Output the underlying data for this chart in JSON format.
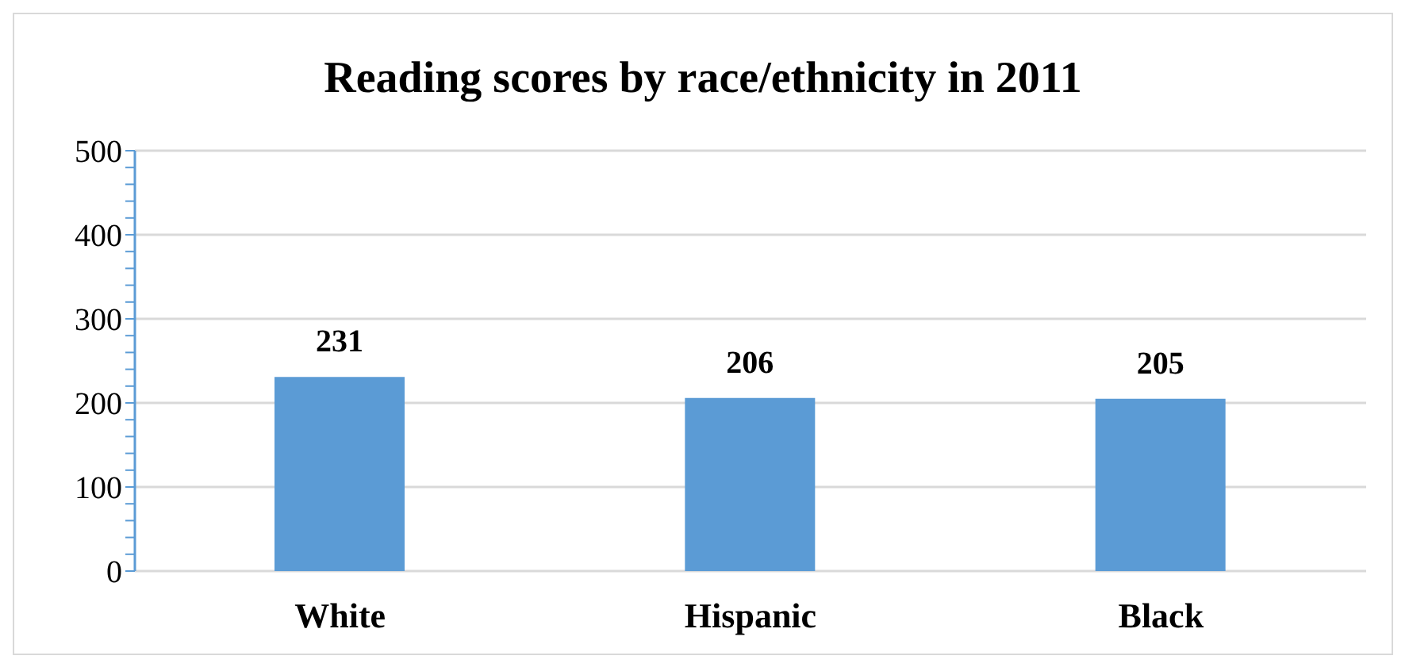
{
  "chart_data": {
    "type": "bar",
    "title": "Reading scores by race/ethnicity in 2011",
    "categories": [
      "White",
      "Hispanic",
      "Black"
    ],
    "values": [
      231,
      206,
      205
    ],
    "color": "#5b9bd5",
    "ylim": [
      0,
      500
    ],
    "yticks": [
      0,
      {
        "value": 20,
        "label": null
      },
      {
        "value": 40,
        "label": null
      },
      {
        "value": 60,
        "label": null
      },
      {
        "value": 80,
        "label": null
      },
      100,
      {
        "value": 120,
        "label": null
      },
      {
        "value": 140,
        "label": null
      },
      {
        "value": 160,
        "label": null
      },
      {
        "value": 180,
        "label": null
      },
      200,
      {
        "value": 220,
        "label": null
      },
      {
        "value": 240,
        "label": null
      },
      {
        "value": 260,
        "label": null
      },
      {
        "value": 280,
        "label": null
      },
      300,
      {
        "value": 320,
        "label": null
      },
      {
        "value": 340,
        "label": null
      },
      {
        "value": 360,
        "label": null
      },
      {
        "value": 380,
        "label": null
      },
      400,
      {
        "value": 420,
        "label": null
      },
      {
        "value": 440,
        "label": null
      },
      {
        "value": 460,
        "label": null
      },
      {
        "value": 480,
        "label": null
      },
      500
    ],
    "grid": "y",
    "data_labels": true
  }
}
